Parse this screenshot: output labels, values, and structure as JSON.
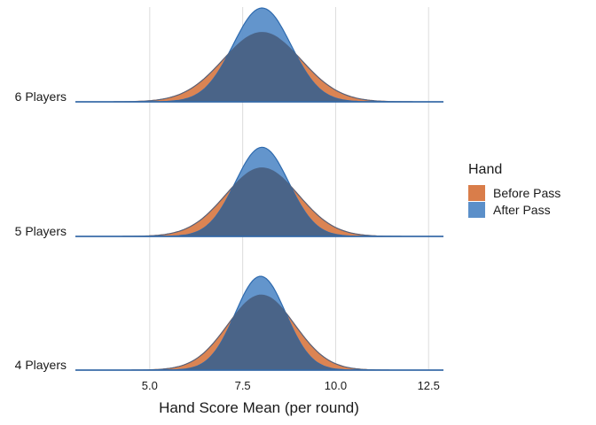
{
  "chart_data": {
    "type": "area",
    "subtype": "ridgeline-density",
    "title": "",
    "xlabel": "Hand Score Mean (per round)",
    "ylabel": "",
    "xlim": [
      3.0,
      12.9
    ],
    "xticks": [
      5.0,
      7.5,
      10.0,
      12.5
    ],
    "xtick_labels": [
      "5.0",
      "7.5",
      "10.0",
      "12.5"
    ],
    "grid": "vertical major gridlines",
    "categories": [
      "6 Players",
      "5 Players",
      "4 Players"
    ],
    "legend": {
      "title": "Hand",
      "position": "right",
      "items": [
        {
          "name": "Before Pass",
          "color": "#D97D4A"
        },
        {
          "name": "After Pass",
          "color": "#5B8FC9"
        }
      ]
    },
    "series": [
      {
        "name": "Before Pass",
        "color": "#D97D4A",
        "distributions": [
          {
            "category": "6 Players",
            "mean": 8.02,
            "sd": 1.05,
            "relative_peak": 0.74
          },
          {
            "category": "5 Players",
            "mean": 8.02,
            "sd": 0.98,
            "relative_peak": 0.73
          },
          {
            "category": "4 Players",
            "mean": 8.0,
            "sd": 0.9,
            "relative_peak": 0.8
          }
        ]
      },
      {
        "name": "After Pass",
        "color": "#5B8FC9",
        "distributions": [
          {
            "category": "6 Players",
            "mean": 8.02,
            "sd": 0.78,
            "relative_peak": 1.0
          },
          {
            "category": "5 Players",
            "mean": 8.02,
            "sd": 0.72,
            "relative_peak": 0.95
          },
          {
            "category": "4 Players",
            "mean": 7.98,
            "sd": 0.68,
            "relative_peak": 1.0
          }
        ]
      }
    ]
  },
  "colors": {
    "before_fill": "#D97D4A",
    "before_stroke": "#C2612C",
    "after_fill": "#5B8FC9",
    "after_stroke": "#2E6AAE",
    "overlap_fill": "#4A6488",
    "grid": "#DCDCDC",
    "baseline": "#2E6AAE"
  }
}
